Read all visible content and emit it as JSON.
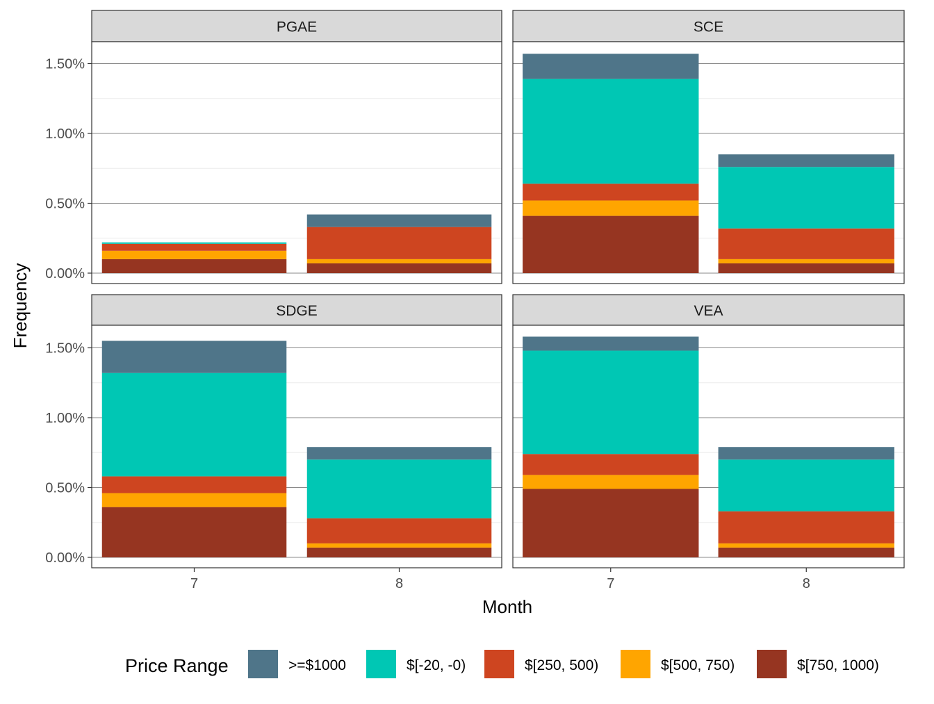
{
  "chart_data": {
    "type": "bar",
    "stacked": true,
    "facet_layout": "2x2",
    "xlabel": "Month",
    "ylabel": "Frequency",
    "categories": [
      "7",
      "8"
    ],
    "ylim": [
      0,
      0.0175
    ],
    "yticks": [
      0,
      0.005,
      0.01,
      0.015
    ],
    "ytick_labels": [
      "0.00%",
      "0.50%",
      "1.00%",
      "1.50%"
    ],
    "grid": true,
    "legend": {
      "title": "Price Range",
      "position": "bottom",
      "entries": [
        {
          "label": ">=$1000",
          "color": "#4F7589"
        },
        {
          "label": "$[-20, -0)",
          "color": "#00C7B4"
        },
        {
          "label": "$[250, 500)",
          "color": "#CE4520"
        },
        {
          "label": "$[500, 750)",
          "color": "#FFA500"
        },
        {
          "label": "$[750, 1000)",
          "color": "#963521"
        }
      ]
    },
    "stack_order_bottom_to_top": [
      "$[750, 1000)",
      "$[500, 750)",
      "$[250, 500)",
      "$[-20, -0)",
      ">=$1000"
    ],
    "panels": [
      {
        "title": "PGAE",
        "series": [
          {
            "name": "$[750, 1000)",
            "values": [
              0.001,
              0.0007
            ]
          },
          {
            "name": "$[500, 750)",
            "values": [
              0.0006,
              0.0003
            ]
          },
          {
            "name": "$[250, 500)",
            "values": [
              0.0005,
              0.0023
            ]
          },
          {
            "name": "$[-20, -0)",
            "values": [
              0.0001,
              0.0
            ]
          },
          {
            "name": ">=$1000",
            "values": [
              0.0,
              0.0009
            ]
          }
        ]
      },
      {
        "title": "SCE",
        "series": [
          {
            "name": "$[750, 1000)",
            "values": [
              0.0041,
              0.0007
            ]
          },
          {
            "name": "$[500, 750)",
            "values": [
              0.0011,
              0.0003
            ]
          },
          {
            "name": "$[250, 500)",
            "values": [
              0.0012,
              0.0022
            ]
          },
          {
            "name": "$[-20, -0)",
            "values": [
              0.0075,
              0.0044
            ]
          },
          {
            "name": ">=$1000",
            "values": [
              0.0018,
              0.0009
            ]
          }
        ]
      },
      {
        "title": "SDGE",
        "series": [
          {
            "name": "$[750, 1000)",
            "values": [
              0.0036,
              0.0007
            ]
          },
          {
            "name": "$[500, 750)",
            "values": [
              0.001,
              0.0003
            ]
          },
          {
            "name": "$[250, 500)",
            "values": [
              0.0012,
              0.0018
            ]
          },
          {
            "name": "$[-20, -0)",
            "values": [
              0.0074,
              0.0042
            ]
          },
          {
            "name": ">=$1000",
            "values": [
              0.0023,
              0.0009
            ]
          }
        ]
      },
      {
        "title": "VEA",
        "series": [
          {
            "name": "$[750, 1000)",
            "values": [
              0.0049,
              0.0007
            ]
          },
          {
            "name": "$[500, 750)",
            "values": [
              0.001,
              0.0003
            ]
          },
          {
            "name": "$[250, 500)",
            "values": [
              0.0015,
              0.0023
            ]
          },
          {
            "name": "$[-20, -0)",
            "values": [
              0.0074,
              0.0037
            ]
          },
          {
            "name": ">=$1000",
            "values": [
              0.001,
              0.0009
            ]
          }
        ]
      }
    ]
  }
}
